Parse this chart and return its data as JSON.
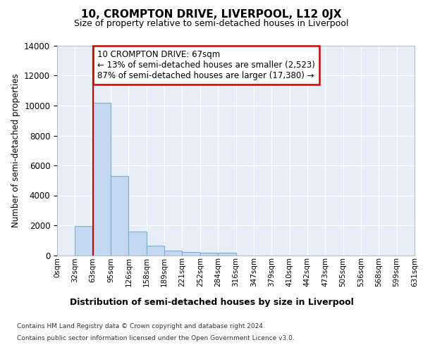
{
  "title": "10, CROMPTON DRIVE, LIVERPOOL, L12 0JX",
  "subtitle": "Size of property relative to semi-detached houses in Liverpool",
  "xlabel": "Distribution of semi-detached houses by size in Liverpool",
  "ylabel": "Number of semi-detached properties",
  "footnote1": "Contains HM Land Registry data © Crown copyright and database right 2024.",
  "footnote2": "Contains public sector information licensed under the Open Government Licence v3.0.",
  "bin_labels": [
    "0sqm",
    "32sqm",
    "63sqm",
    "95sqm",
    "126sqm",
    "158sqm",
    "189sqm",
    "221sqm",
    "252sqm",
    "284sqm",
    "316sqm",
    "347sqm",
    "379sqm",
    "410sqm",
    "442sqm",
    "473sqm",
    "505sqm",
    "536sqm",
    "568sqm",
    "599sqm",
    "631sqm"
  ],
  "bar_values": [
    0,
    1950,
    10200,
    5300,
    1580,
    650,
    290,
    210,
    160,
    150,
    0,
    0,
    0,
    0,
    0,
    0,
    0,
    0,
    0,
    0
  ],
  "bar_color": "#c5d8f0",
  "bar_edgecolor": "#7aadd4",
  "ylim": [
    0,
    14000
  ],
  "yticks": [
    0,
    2000,
    4000,
    6000,
    8000,
    10000,
    12000,
    14000
  ],
  "annotation_title": "10 CROMPTON DRIVE: 67sqm",
  "annotation_line1": "← 13% of semi-detached houses are smaller (2,523)",
  "annotation_line2": "87% of semi-detached houses are larger (17,380) →",
  "vline_color": "#cc0000",
  "annotation_box_edgecolor": "#cc0000",
  "bin_width": 31,
  "num_bins": 20,
  "bg_color": "#e8eef8",
  "grid_color": "#ffffff"
}
